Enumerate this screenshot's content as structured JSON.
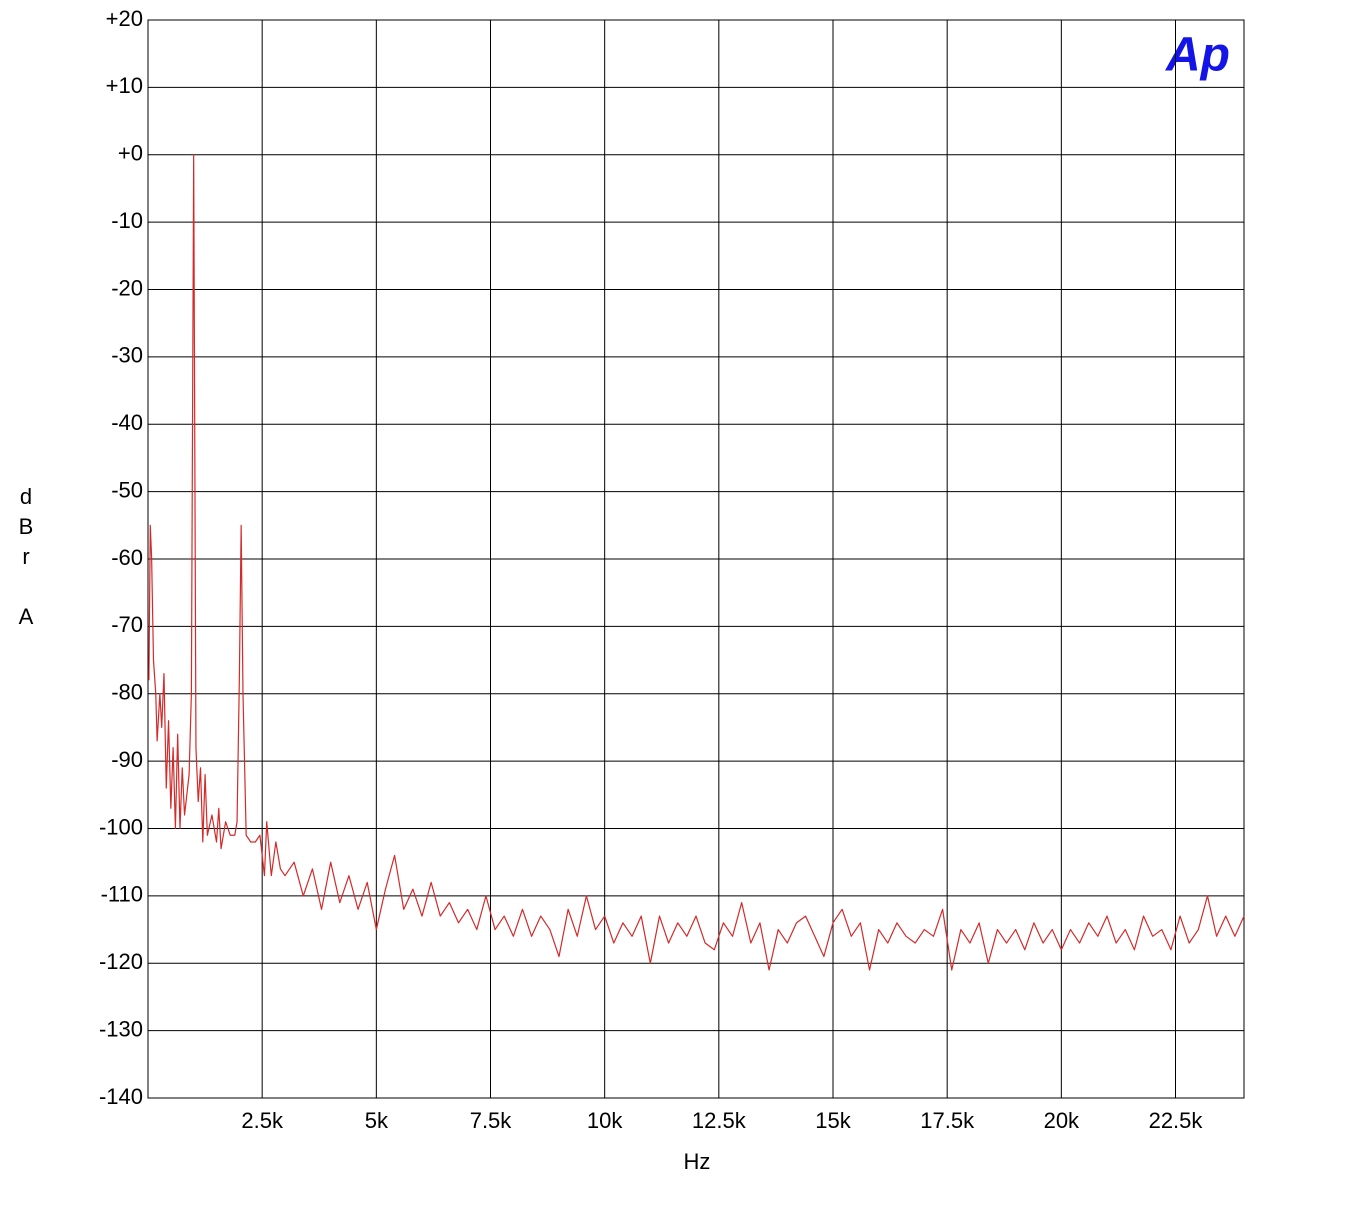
{
  "chart_data": {
    "type": "line",
    "logo": "Ap",
    "x_label": "Hz",
    "y_label": "dBr A",
    "color": "#d42a2a",
    "grid": true,
    "xlim": [
      0,
      24000
    ],
    "ylim": [
      -140,
      20
    ],
    "xticks": [
      {
        "value": 2500,
        "label": "2.5k"
      },
      {
        "value": 5000,
        "label": "5k"
      },
      {
        "value": 7500,
        "label": "7.5k"
      },
      {
        "value": 10000,
        "label": "10k"
      },
      {
        "value": 12500,
        "label": "12.5k"
      },
      {
        "value": 15000,
        "label": "15k"
      },
      {
        "value": 17500,
        "label": "17.5k"
      },
      {
        "value": 20000,
        "label": "20k"
      },
      {
        "value": 22500,
        "label": "22.5k"
      }
    ],
    "yticks": [
      {
        "value": 20,
        "label": "+20"
      },
      {
        "value": 10,
        "label": "+10"
      },
      {
        "value": 0,
        "label": "+0"
      },
      -10,
      -20,
      -30,
      -40,
      -50,
      -60,
      -70,
      -80,
      -90,
      -100,
      -110,
      -120,
      -130,
      -140
    ],
    "x": [
      20,
      50,
      80,
      120,
      170,
      200,
      260,
      300,
      350,
      400,
      450,
      500,
      550,
      600,
      650,
      700,
      750,
      800,
      850,
      900,
      950,
      1000,
      1050,
      1100,
      1150,
      1200,
      1250,
      1300,
      1400,
      1500,
      1550,
      1600,
      1700,
      1800,
      1900,
      1950,
      2000,
      2040,
      2080,
      2150,
      2250,
      2350,
      2450,
      2550,
      2600,
      2700,
      2800,
      2900,
      3000,
      3200,
      3400,
      3600,
      3800,
      4000,
      4200,
      4400,
      4600,
      4800,
      5000,
      5200,
      5400,
      5600,
      5800,
      6000,
      6200,
      6400,
      6600,
      6800,
      7000,
      7200,
      7400,
      7600,
      7800,
      8000,
      8200,
      8400,
      8600,
      8800,
      9000,
      9200,
      9400,
      9600,
      9800,
      10000,
      10200,
      10400,
      10600,
      10800,
      11000,
      11200,
      11400,
      11600,
      11800,
      12000,
      12200,
      12400,
      12600,
      12800,
      13000,
      13200,
      13400,
      13600,
      13800,
      14000,
      14200,
      14400,
      14600,
      14800,
      15000,
      15200,
      15400,
      15600,
      15800,
      16000,
      16200,
      16400,
      16600,
      16800,
      17000,
      17200,
      17400,
      17600,
      17800,
      18000,
      18200,
      18400,
      18600,
      18800,
      19000,
      19200,
      19400,
      19600,
      19800,
      20000,
      20200,
      20400,
      20600,
      20800,
      21000,
      21200,
      21400,
      21600,
      21800,
      22000,
      22200,
      22400,
      22600,
      22800,
      23000,
      23200,
      23400,
      23600,
      23800,
      24000
    ],
    "values": [
      -78,
      -55,
      -60,
      -75,
      -80,
      -87,
      -80,
      -85,
      -77,
      -94,
      -84,
      -97,
      -88,
      -100,
      -86,
      -100,
      -91,
      -98,
      -95,
      -92,
      -80,
      0,
      -88,
      -96,
      -91,
      -102,
      -92,
      -101,
      -98,
      -102,
      -97,
      -103,
      -99,
      -101,
      -101,
      -99,
      -78,
      -55,
      -80,
      -101,
      -102,
      -102,
      -101,
      -107,
      -99,
      -107,
      -102,
      -106,
      -107,
      -105,
      -110,
      -106,
      -112,
      -105,
      -111,
      -107,
      -112,
      -108,
      -115,
      -109,
      -104,
      -112,
      -109,
      -113,
      -108,
      -113,
      -111,
      -114,
      -112,
      -115,
      -110,
      -115,
      -113,
      -116,
      -112,
      -116,
      -113,
      -115,
      -119,
      -112,
      -116,
      -110,
      -115,
      -113,
      -117,
      -114,
      -116,
      -113,
      -120,
      -113,
      -117,
      -114,
      -116,
      -113,
      -117,
      -118,
      -114,
      -116,
      -111,
      -117,
      -114,
      -121,
      -115,
      -117,
      -114,
      -113,
      -116,
      -119,
      -114,
      -112,
      -116,
      -114,
      -121,
      -115,
      -117,
      -114,
      -116,
      -117,
      -115,
      -116,
      -112,
      -121,
      -115,
      -117,
      -114,
      -120,
      -115,
      -117,
      -115,
      -118,
      -114,
      -117,
      -115,
      -118,
      -115,
      -117,
      -114,
      -116,
      -113,
      -117,
      -115,
      -118,
      -113,
      -116,
      -115,
      -118,
      -113,
      -117,
      -115,
      -110,
      -116,
      -113,
      -116,
      -113
    ]
  }
}
